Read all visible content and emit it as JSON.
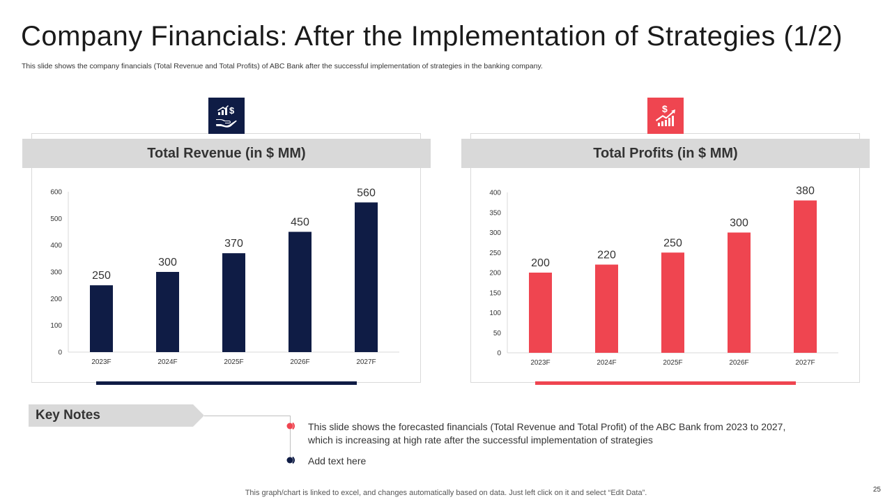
{
  "title": "Company Financials: After the Implementation of Strategies (1/2)",
  "subtitle": "This slide shows the company financials (Total Revenue and Total Profits) of ABC Bank after the successful implementation of strategies in the banking company.",
  "colors": {
    "navy": "#0f1c45",
    "red": "#ef4550",
    "grey_header": "#d9d9d9"
  },
  "icons": {
    "revenue": "money-growth-hand-icon",
    "profits": "dollar-growth-chart-icon"
  },
  "chart_data": [
    {
      "type": "bar",
      "title": "Total Revenue (in $ MM)",
      "categories": [
        "2023F",
        "2024F",
        "2025F",
        "2026F",
        "2027F"
      ],
      "values": [
        250,
        300,
        370,
        450,
        560
      ],
      "ylim": [
        0,
        600
      ],
      "yticks": [
        0,
        100,
        200,
        300,
        400,
        500,
        600
      ],
      "xlabel": "",
      "ylabel": "",
      "color": "#0f1c45"
    },
    {
      "type": "bar",
      "title": "Total Profits (in $ MM)",
      "categories": [
        "2023F",
        "2024F",
        "2025F",
        "2026F",
        "2027F"
      ],
      "values": [
        200,
        220,
        250,
        300,
        380
      ],
      "ylim": [
        0,
        400
      ],
      "yticks": [
        0,
        50,
        100,
        150,
        200,
        250,
        300,
        350,
        400
      ],
      "xlabel": "",
      "ylabel": "",
      "color": "#ef4550"
    }
  ],
  "key_notes": {
    "label": "Key Notes",
    "items": [
      "This slide shows the forecasted financials (Total Revenue and Total Profit) of the ABC Bank from 2023 to 2027,",
      "which is increasing at high rate after the successful implementation of strategies",
      "Add text here"
    ]
  },
  "footer": "This graph/chart is linked to excel,  and changes automatically based on data. Just left click on it and select “Edit Data”.",
  "page_number": "25"
}
